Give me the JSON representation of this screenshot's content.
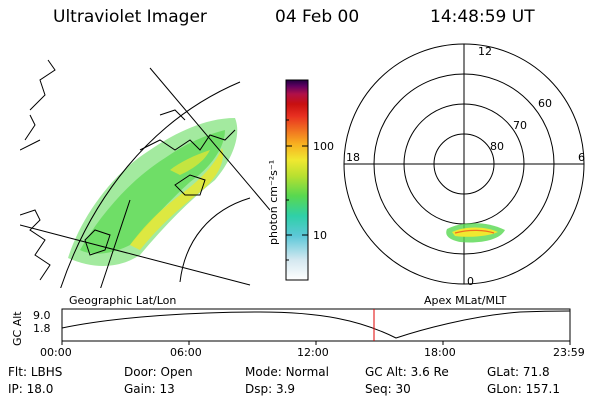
{
  "header": {
    "instrument": "Ultraviolet Imager",
    "date": "04 Feb 00",
    "time": "14:48:59 UT"
  },
  "geo_panel": {
    "label": "Geographic Lat/Lon"
  },
  "colorbar": {
    "unit_label": "photon cm⁻²s⁻¹",
    "ticks": [
      "100",
      "10"
    ],
    "colors": [
      "#ffffff",
      "#d4e8f0",
      "#5dc8d8",
      "#2fd0a8",
      "#58d850",
      "#b8e030",
      "#f0e830",
      "#f8b020",
      "#f07020",
      "#e83020",
      "#c81010",
      "#b01048",
      "#600060",
      "#200040",
      "#000000"
    ]
  },
  "polar_panel": {
    "label": "Apex MLat/MLT",
    "mlt_labels": [
      "12",
      "18",
      "6",
      "0"
    ],
    "lat_labels": [
      "60",
      "70",
      "80"
    ]
  },
  "altitude_plot": {
    "ylabel": "GC Alt",
    "yticks": [
      "9.0",
      "1.8"
    ],
    "xticks": [
      "00:00",
      "06:00",
      "12:00",
      "18:00",
      "23:59"
    ],
    "current_time_marker": "14:48:59"
  },
  "status": [
    {
      "label": "Flt:",
      "value": "LBHS"
    },
    {
      "label": "Door:",
      "value": "Open"
    },
    {
      "label": "Mode:",
      "value": "Normal"
    },
    {
      "label": "GC Alt:",
      "value": "3.6 Re"
    },
    {
      "label": "GLat:",
      "value": "71.8"
    },
    {
      "label": "IP:",
      "value": "18.0"
    },
    {
      "label": "Gain:",
      "value": "13"
    },
    {
      "label": "Dsp:",
      "value": "3.9"
    },
    {
      "label": "Seq:",
      "value": "30"
    },
    {
      "label": "GLon:",
      "value": "157.1"
    }
  ],
  "colors": {
    "foreground": "#000000",
    "time_marker": "#e00000",
    "aurora_low": "#58d850",
    "aurora_high": "#f0e830"
  }
}
